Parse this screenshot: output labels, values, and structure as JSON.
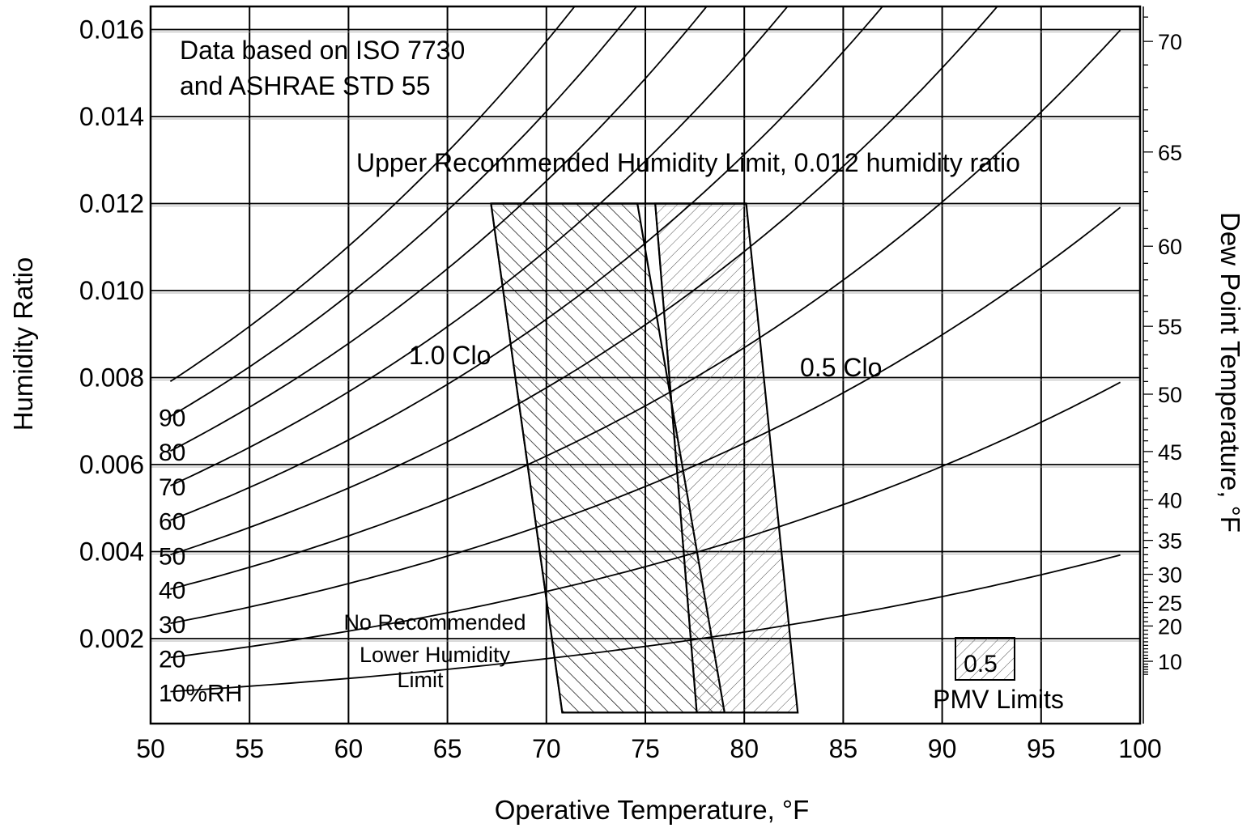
{
  "chart_data": {
    "type": "line",
    "title": "",
    "xlabel": "Operative Temperature, °F",
    "ylabel": "Humidity Ratio",
    "y2label": "Dew Point Temperature, °F",
    "xlim": [
      50,
      100
    ],
    "ylim": [
      0,
      0.0165
    ],
    "grid": true,
    "x_ticks": [
      50,
      55,
      60,
      65,
      70,
      75,
      80,
      85,
      90,
      95,
      100
    ],
    "y_ticks": [
      {
        "value": 0.002,
        "label": "0.002"
      },
      {
        "value": 0.004,
        "label": "0.004"
      },
      {
        "value": 0.006,
        "label": "0.006"
      },
      {
        "value": 0.008,
        "label": "0.008"
      },
      {
        "value": 0.01,
        "label": "0.010"
      },
      {
        "value": 0.012,
        "label": "0.012"
      },
      {
        "value": 0.014,
        "label": "0.014"
      },
      {
        "value": 0.016,
        "label": "0.016"
      }
    ],
    "dew_point_ticks": [
      10,
      20,
      25,
      30,
      35,
      40,
      45,
      50,
      55,
      60,
      65,
      70
    ],
    "rh_curves": [
      {
        "rh": 10,
        "label": "10%RH"
      },
      {
        "rh": 20,
        "label": "20"
      },
      {
        "rh": 30,
        "label": "30"
      },
      {
        "rh": 40,
        "label": "40"
      },
      {
        "rh": 50,
        "label": "50"
      },
      {
        "rh": 60,
        "label": "60"
      },
      {
        "rh": 70,
        "label": "70"
      },
      {
        "rh": 80,
        "label": "80"
      },
      {
        "rh": 90,
        "label": "90"
      },
      {
        "rh": 100,
        "label": ""
      }
    ],
    "rh_x_range": [
      51,
      99
    ],
    "comfort_zones": [
      {
        "name": "1.0 Clo",
        "hatch": "backslash",
        "polygon": [
          [
            67.2,
            0.012
          ],
          [
            74.6,
            0.012
          ],
          [
            79.0,
            0.0003
          ],
          [
            70.8,
            0.0003
          ]
        ]
      },
      {
        "name": "0.5 Clo",
        "hatch": "slash",
        "polygon": [
          [
            75.5,
            0.012
          ],
          [
            80.1,
            0.012
          ],
          [
            82.7,
            0.0003
          ],
          [
            77.6,
            0.0003
          ]
        ]
      }
    ],
    "upper_humidity_limit": 0.012,
    "annotations": {
      "source_line1": "Data based on ISO 7730",
      "source_line2": "and ASHRAE STD 55",
      "upper_limit": "Upper Recommended Humidity Limit, 0.012 humidity ratio",
      "clo_1": "1.0 Clo",
      "clo_05": "0.5 Clo",
      "lower_limit_line1": "No Recommended",
      "lower_limit_line2": "Lower Humidity",
      "lower_limit_line3": "Limit",
      "pmv_box": "0.5",
      "pmv_label": "PMV Limits"
    }
  }
}
